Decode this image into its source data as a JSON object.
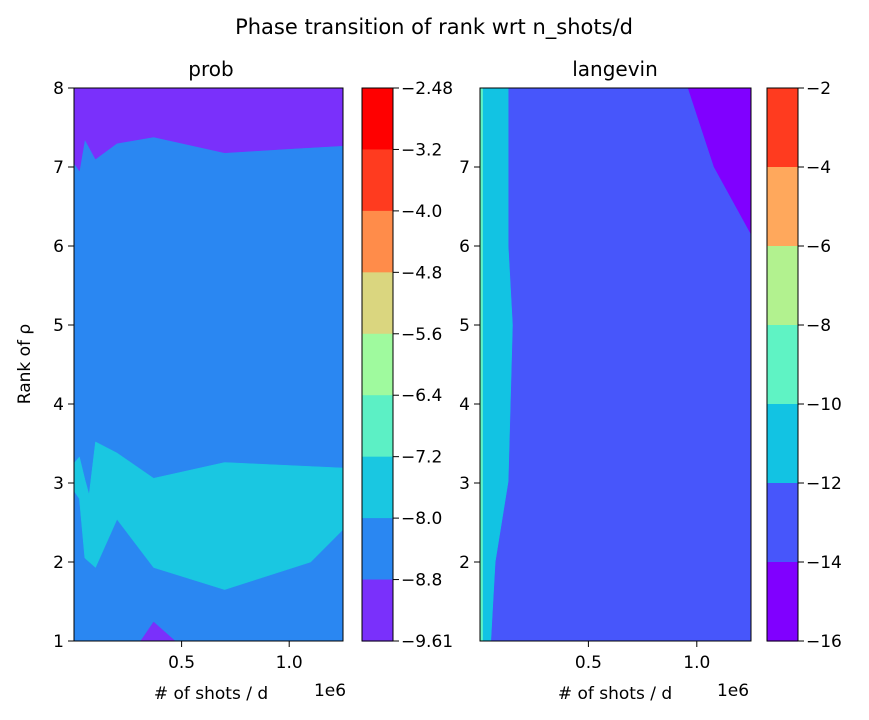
{
  "suptitle": "Phase transition of rank wrt n_shots/d",
  "chart_data": [
    {
      "type": "contourf",
      "title": "prob",
      "xlabel": "# of shots / d",
      "ylabel": "Rank of ρ",
      "x_offset_label": "1e6",
      "xlim": [
        0.0,
        1.25
      ],
      "ylim": [
        1,
        8
      ],
      "xticks": [
        "0.5",
        "1.0"
      ],
      "yticks": [
        "1",
        "2",
        "3",
        "4",
        "5",
        "6",
        "7",
        "8"
      ],
      "colormap": "rainbow",
      "colorbar": {
        "tick_labels": [
          "−2.48",
          "−3.2",
          "−4.0",
          "−4.8",
          "−5.6",
          "−6.4",
          "−7.2",
          "−8.0",
          "−8.8",
          "−9.61"
        ],
        "levels_top_to_bottom": [
          -2.48,
          -3.2,
          -4.0,
          -4.8,
          -5.6,
          -6.4,
          -7.2,
          -8.0,
          -8.8,
          -9.61
        ],
        "band_colors_top_to_bottom": [
          "#ff0000",
          "#ff3b1f",
          "#ff8c4a",
          "#dad67f",
          "#9ffa9e",
          "#5cf0c5",
          "#1ac7e1",
          "#2a87f2",
          "#7a30fb"
        ]
      },
      "regions": [
        {
          "range": [
            -9.61,
            -8.8
          ],
          "color": "#7a30fb",
          "boundaries": [
            [
              [
                0.0,
                8
              ],
              [
                0.0,
                7.05
              ],
              [
                0.025,
                6.95
              ],
              [
                0.05,
                7.35
              ],
              [
                0.1,
                7.1
              ],
              [
                0.2,
                7.3
              ],
              [
                0.37,
                7.38
              ],
              [
                0.7,
                7.18
              ],
              [
                1.0,
                7.23
              ],
              [
                1.25,
                7.27
              ],
              [
                1.25,
                8
              ]
            ],
            [
              [
                0.31,
                1
              ],
              [
                0.37,
                1.24
              ],
              [
                0.47,
                1
              ]
            ]
          ]
        },
        {
          "range": [
            -8.8,
            -8.0
          ],
          "color": "#2a87f2",
          "fills_remainder": true
        },
        {
          "range": [
            -8.0,
            -7.2
          ],
          "color": "#1ac7e1",
          "boundaries": [
            [
              [
                0.0,
                3.25
              ],
              [
                0.025,
                3.33
              ],
              [
                0.05,
                3.05
              ],
              [
                0.07,
                2.85
              ],
              [
                0.1,
                3.52
              ],
              [
                0.2,
                3.38
              ],
              [
                0.37,
                3.06
              ],
              [
                0.7,
                3.26
              ],
              [
                1.25,
                3.19
              ],
              [
                1.25,
                2.41
              ],
              [
                1.1,
                2.0
              ],
              [
                0.7,
                1.65
              ],
              [
                0.37,
                1.93
              ],
              [
                0.2,
                2.54
              ],
              [
                0.1,
                1.93
              ],
              [
                0.05,
                2.05
              ],
              [
                0.025,
                2.8
              ],
              [
                0.0,
                2.9
              ]
            ]
          ]
        }
      ]
    },
    {
      "type": "contourf",
      "title": "langevin",
      "xlabel": "# of shots / d",
      "x_offset_label": "1e6",
      "xlim": [
        0.0,
        1.25
      ],
      "ylim": [
        1,
        8
      ],
      "xticks": [
        "0.5",
        "1.0"
      ],
      "yticks": [
        "2",
        "3",
        "4",
        "5",
        "6",
        "7"
      ],
      "colormap": "rainbow",
      "colorbar": {
        "tick_labels": [
          "−2",
          "−4",
          "−6",
          "−8",
          "−10",
          "−12",
          "−14",
          "−16"
        ],
        "levels_top_to_bottom": [
          -2,
          -4,
          -6,
          -8,
          -10,
          -12,
          -14,
          -16
        ],
        "band_colors_top_to_bottom": [
          "#ff3b1f",
          "#ffa85c",
          "#b2f28f",
          "#5ff3c4",
          "#12c3e3",
          "#4756fb",
          "#8000ff"
        ]
      },
      "regions": [
        {
          "range": [
            -14,
            -12
          ],
          "color": "#4756fb",
          "fills_remainder": true
        },
        {
          "range": [
            -12,
            -10
          ],
          "color": "#12c3e3",
          "boundaries": [
            [
              [
                0.0,
                8
              ],
              [
                0.13,
                8
              ],
              [
                0.13,
                6
              ],
              [
                0.15,
                5
              ],
              [
                0.13,
                3.02
              ],
              [
                0.07,
                2.0
              ],
              [
                0.05,
                1
              ],
              [
                0.0,
                1
              ]
            ]
          ]
        },
        {
          "range": [
            -10,
            -8
          ],
          "color": "#5ff3c4",
          "boundaries": [
            [
              [
                0.0,
                8
              ],
              [
                0.012,
                8
              ],
              [
                0.012,
                1
              ],
              [
                0.0,
                1
              ]
            ]
          ]
        },
        {
          "range": [
            -16,
            -14
          ],
          "color": "#8000ff",
          "boundaries": [
            [
              [
                0.96,
                8
              ],
              [
                1.25,
                8
              ],
              [
                1.25,
                6.15
              ],
              [
                1.08,
                7.0
              ]
            ]
          ]
        }
      ]
    }
  ]
}
